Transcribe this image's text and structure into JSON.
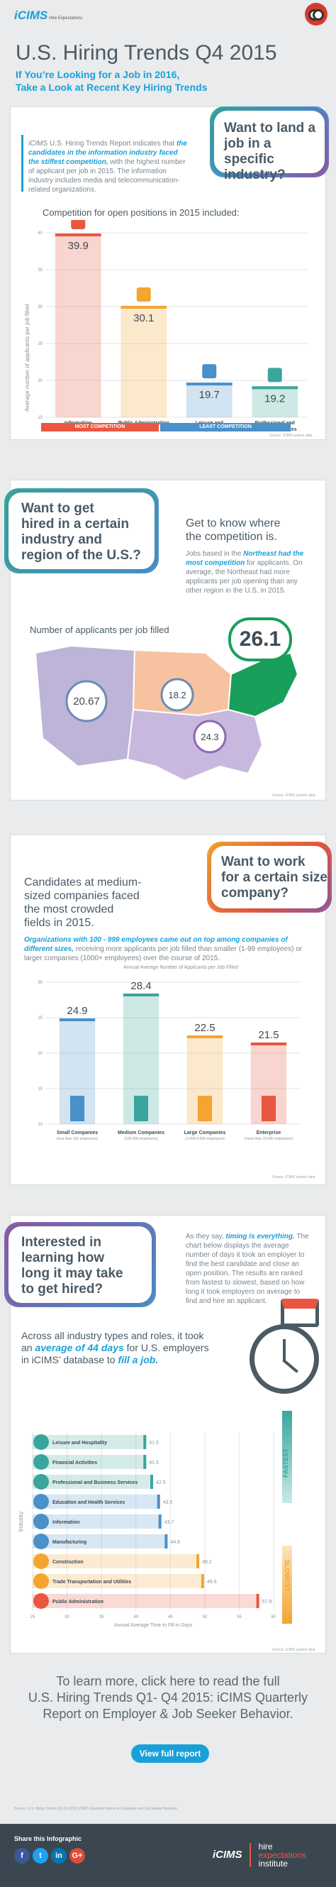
{
  "header": {
    "logo": "iCIMS",
    "logo_tag": "Hire Expectations",
    "title": "U.S. Hiring Trends Q4 2015",
    "subtitle_line1": "If You’re Looking for a Job in 2016,",
    "subtitle_line2": "Take a Look at Recent Key Hiring Trends"
  },
  "section1": {
    "question_line1": "Want to land a",
    "question_line2": "job in a specific",
    "question_line3": "industry?",
    "intro_a": "iCIMS U.S. Hiring Trends Report indicates that",
    "intro_b": "the candidates in the information industry faced the stiffest competition,",
    "intro_c": "with the highest number of applicant per job in 2015. The information industry includes media and telecommunication-related organizations.",
    "chart_title": "Competition for open positions in 2015 included:",
    "most_label": "MOST COMPETITION",
    "least_label": "LEAST COMPETITION",
    "source": "Source: iCIMS system data"
  },
  "section2": {
    "question_line1": "Want to get",
    "question_line2": "hired in a certain",
    "question_line3": "industry and",
    "question_line4": "region of the U.S.?",
    "lead": "Get to know where the competition is.",
    "text_a": "Jobs based in the",
    "text_b": "Northeast had the most competition",
    "text_c": "for applicants. On average, the Northeast had more applicants per job opening than any other region in the U.S. in 2015.",
    "map_title": "Number of applicants per job filled",
    "source": "Source: iCIMS system data"
  },
  "section3": {
    "lead_line1": "Candidates at medium-",
    "lead_line2": "sized companies faced",
    "lead_line3": "the most crowded",
    "lead_line4": "fields in 2015.",
    "question_line1": "Want to work",
    "question_line2": "for a certain size",
    "question_line3": "company?",
    "text_a": "Organizations with 100 - 999 employees came out on top among companies of different sizes,",
    "text_b": "receiving more applicants per job filled than smaller (1-99 employees) or larger companies (1000+ employees) over the course of 2015.",
    "chart_title": "Annual Average Number of Applicants per Job Filled",
    "source": "Source: iCIMS system data"
  },
  "section4": {
    "question_line1": "Interested in",
    "question_line2": "learning how",
    "question_line3": "long it may take",
    "question_line4": "to get hired?",
    "text_a": "As they say,",
    "text_b": "timing is everything.",
    "text_c": "The chart below displays the average number of days it took an employer to find the best candidate and close an open position. The results are ranked from fastest to slowest, based on how long it took employers on average to find and hire an applicant.",
    "lead_a": "Across all industry types and roles, it took an",
    "lead_b": "average of 44 days",
    "lead_c": "for U.S. employers in iCIMS’ database to",
    "lead_d": "fill a job.",
    "fastest": "FASTEST",
    "slowest": "SLOWEST",
    "source": "Source: iCIMS system data"
  },
  "cta": {
    "line1": "To learn more, click here to read the full",
    "line2": "U.S. Hiring Trends Q1- Q4 2015: iCIMS Quarterly",
    "line3": "Report on Employer & Job Seeker Behavior.",
    "button": "View full report",
    "source_note": "Source: U.S. Hiring Trends Q1-Q4 2015: iCIMS Quarterly Report on Employer and Job Seeker Behavior"
  },
  "footer": {
    "share": "Share this Infographic",
    "brand_a": "iCIMS",
    "brand_b": "hire",
    "brand_c": "expectations",
    "brand_d": "institute"
  },
  "chart_data": [
    {
      "type": "bar",
      "title": "Competition for open positions in 2015 included:",
      "ylabel": "Average number of applicants per job filled",
      "categories": [
        "Information",
        "Public Administration",
        "Leisure and Hospitality",
        "Professional and Business Services"
      ],
      "values": [
        39.9,
        30.1,
        19.7,
        19.2
      ],
      "yticks": [
        15,
        20,
        25,
        30,
        35,
        40
      ],
      "ylim": [
        15,
        40
      ],
      "colors": [
        "#e8573f",
        "#f3a530",
        "#4a90c9",
        "#3aa59c"
      ]
    },
    {
      "type": "map",
      "title": "Number of applicants per job filled",
      "regions": [
        {
          "name": "West",
          "value": 20.67
        },
        {
          "name": "Midwest",
          "value": 18.2
        },
        {
          "name": "South",
          "value": 24.3
        },
        {
          "name": "Northeast",
          "value": 26.1
        }
      ]
    },
    {
      "type": "bar",
      "title": "Annual Average Number of Applicants per Job Filled",
      "categories": [
        "Small Companies",
        "Medium Companies",
        "Large Companies",
        "Enterprise"
      ],
      "subcategories": [
        "(less than 100 employees)",
        "(100-999 employees)",
        "(1,000-9,999 employees)",
        "(more than 10,000 employees)"
      ],
      "values": [
        24.9,
        28.4,
        22.5,
        21.5
      ],
      "yticks": [
        10,
        15,
        20,
        25,
        30
      ],
      "ylim": [
        10,
        30
      ],
      "colors": [
        "#4a90c9",
        "#3aa59c",
        "#f3a530",
        "#e8573f"
      ]
    },
    {
      "type": "bar",
      "orientation": "horizontal",
      "xlabel": "Annual Average Time to Fill in Days",
      "ylabel": "Industry",
      "categories": [
        "Leisure and Hospitality",
        "Financial Activities",
        "Professional and Business Services",
        "Education and Health Services",
        "Information",
        "Manufacturing",
        "Construction",
        "Trade Transportation and Utilities",
        "Public Administration"
      ],
      "values": [
        41.5,
        41.5,
        42.5,
        43.5,
        43.7,
        44.6,
        49.2,
        49.9,
        57.9
      ],
      "xticks": [
        25,
        30,
        35,
        40,
        45,
        50,
        55,
        60
      ],
      "xlim": [
        25,
        60
      ],
      "colors": [
        "#3aa59c",
        "#3aa59c",
        "#3aa59c",
        "#4a90c9",
        "#4a90c9",
        "#4a90c9",
        "#f3a530",
        "#f3a530",
        "#e8573f"
      ]
    }
  ]
}
